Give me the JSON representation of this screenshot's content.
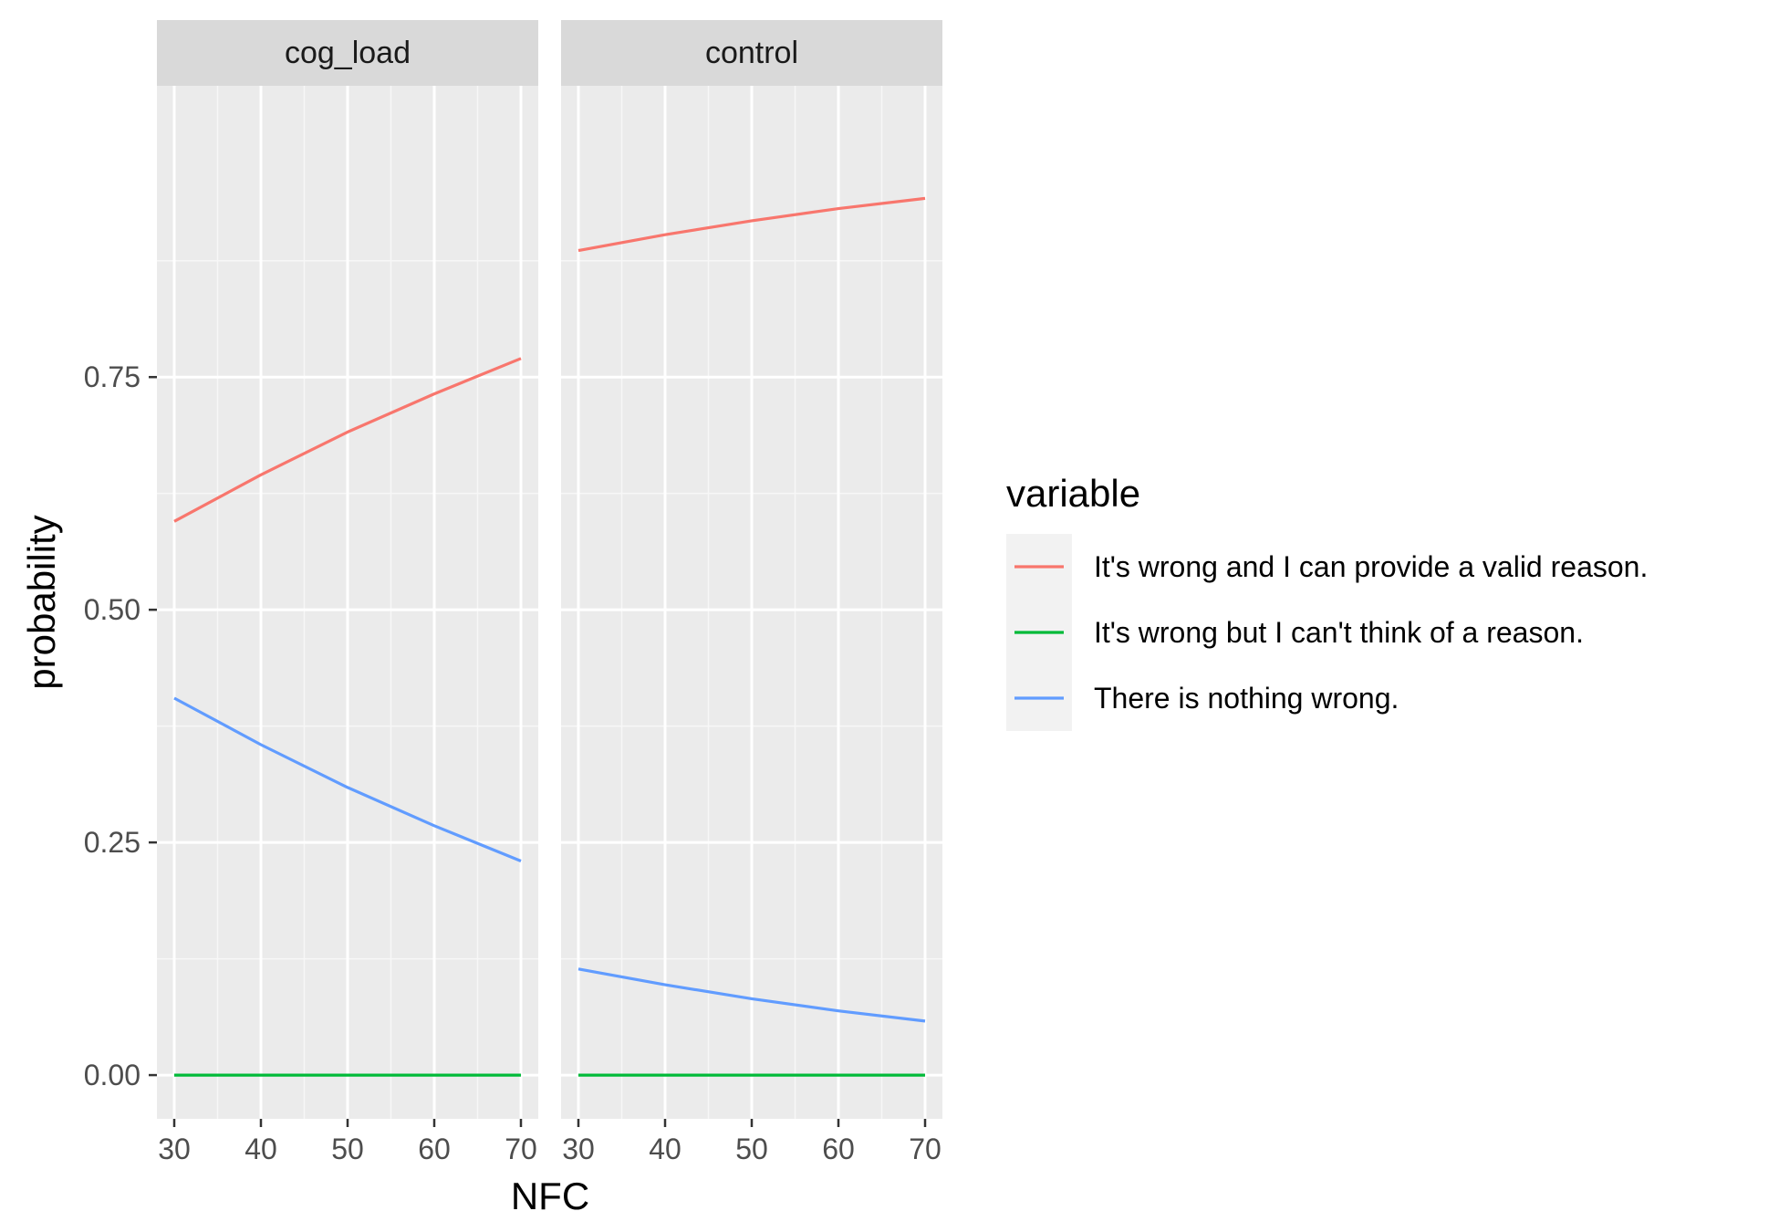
{
  "chart_data": {
    "type": "line",
    "xlabel": "NFC",
    "ylabel": "probability",
    "x_ticks": [
      30,
      40,
      50,
      60,
      70
    ],
    "y_ticks": [
      0.0,
      0.25,
      0.5,
      0.75
    ],
    "y_tick_labels": [
      "0.00",
      "0.25",
      "0.50",
      "0.75"
    ],
    "xlim": [
      28,
      72
    ],
    "ylim": [
      -0.047,
      1.063
    ],
    "grid": true,
    "legend": {
      "title": "variable",
      "position": "right",
      "entries": [
        "It's wrong and I can provide a valid reason.",
        "It's wrong but I can't think of a reason.",
        "There is nothing wrong."
      ]
    },
    "colors": {
      "It's wrong and I can provide a valid reason.": "#F8766D",
      "It's wrong but I can't think of a reason.": "#00BA38",
      "There is nothing wrong.": "#619CFF"
    },
    "panels": [
      {
        "label": "cog_load",
        "x": [
          30,
          40,
          50,
          60,
          70
        ],
        "series": [
          {
            "name": "It's wrong and I can provide a valid reason.",
            "values": [
              0.595,
              0.645,
              0.691,
              0.732,
              0.77
            ]
          },
          {
            "name": "It's wrong but I can't think of a reason.",
            "values": [
              0.0,
              0.0,
              0.0,
              0.0,
              0.0
            ]
          },
          {
            "name": "There is nothing wrong.",
            "values": [
              0.405,
              0.355,
              0.309,
              0.268,
              0.23
            ]
          }
        ]
      },
      {
        "label": "control",
        "x": [
          30,
          40,
          50,
          60,
          70
        ],
        "series": [
          {
            "name": "It's wrong and I can provide a valid reason.",
            "values": [
              0.886,
              0.903,
              0.918,
              0.931,
              0.942
            ]
          },
          {
            "name": "It's wrong but I can't think of a reason.",
            "values": [
              0.0,
              0.0,
              0.0,
              0.0,
              0.0
            ]
          },
          {
            "name": "There is nothing wrong.",
            "values": [
              0.114,
              0.097,
              0.082,
              0.069,
              0.058
            ]
          }
        ]
      }
    ]
  }
}
